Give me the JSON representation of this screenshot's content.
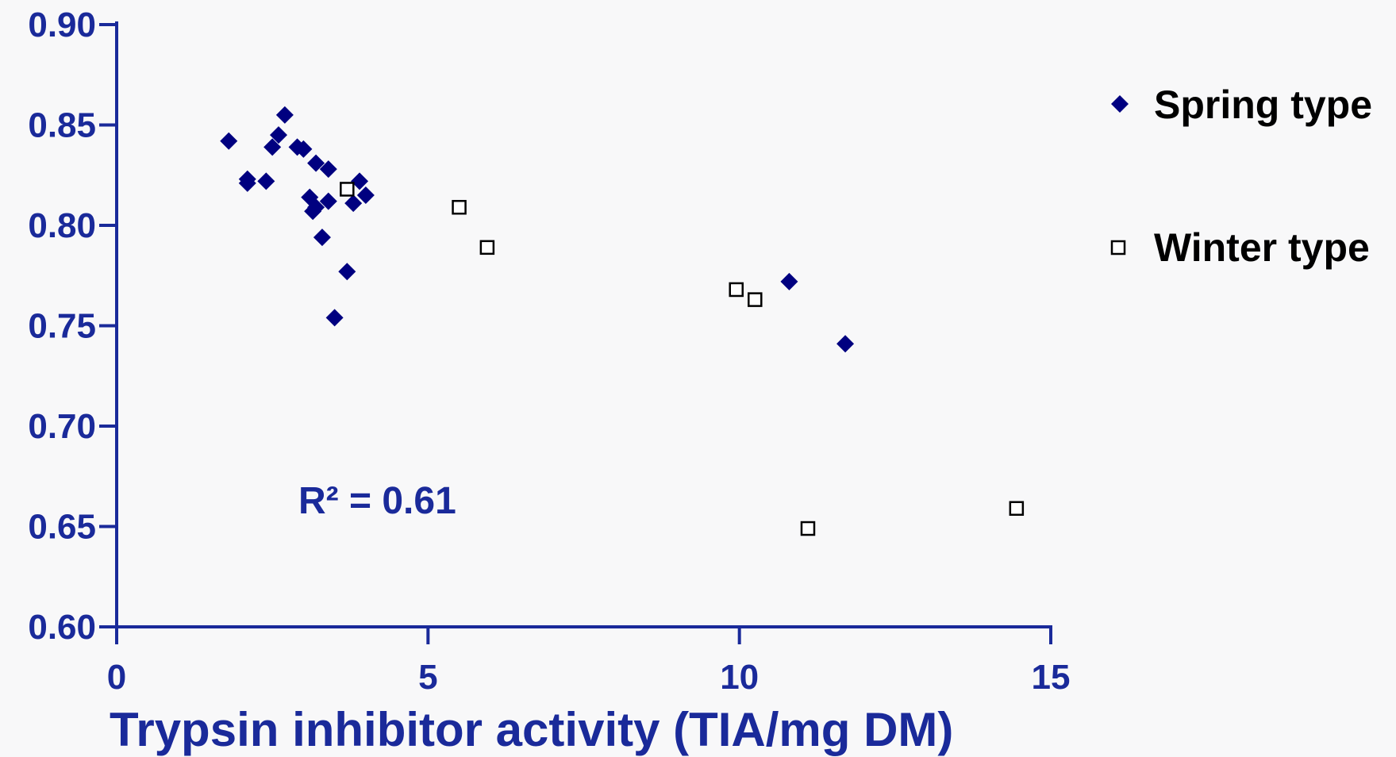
{
  "colors": {
    "axis": "#1a2a9a",
    "spring": "#000080",
    "winter": "#000000",
    "background": "#f8f8f9"
  },
  "chart_data": {
    "type": "scatter",
    "title": "",
    "xlabel": "Trypsin inhibitor activity (TIA/mg DM)",
    "ylabel": "",
    "xlim": [
      0,
      15
    ],
    "ylim": [
      0.6,
      0.9
    ],
    "x_ticks": [
      0,
      5,
      10,
      15
    ],
    "x_tick_labels": [
      "0",
      "5",
      "10",
      "15"
    ],
    "y_ticks": [
      0.6,
      0.65,
      0.7,
      0.75,
      0.8,
      0.85,
      0.9
    ],
    "y_tick_labels": [
      "0.60",
      "0.65",
      "0.70",
      "0.75",
      "0.80",
      "0.85",
      "0.90"
    ],
    "grid": false,
    "legend_position": "right",
    "annotation": "R² = 0.61",
    "series": [
      {
        "name": "Spring type",
        "marker": "diamond",
        "points": [
          [
            1.8,
            0.842
          ],
          [
            2.1,
            0.823
          ],
          [
            2.1,
            0.821
          ],
          [
            2.4,
            0.822
          ],
          [
            2.5,
            0.839
          ],
          [
            2.6,
            0.845
          ],
          [
            2.7,
            0.855
          ],
          [
            2.9,
            0.839
          ],
          [
            3.0,
            0.838
          ],
          [
            3.1,
            0.814
          ],
          [
            3.15,
            0.807
          ],
          [
            3.2,
            0.831
          ],
          [
            3.2,
            0.809
          ],
          [
            3.3,
            0.794
          ],
          [
            3.4,
            0.828
          ],
          [
            3.4,
            0.812
          ],
          [
            3.5,
            0.754
          ],
          [
            3.7,
            0.777
          ],
          [
            3.8,
            0.811
          ],
          [
            3.9,
            0.822
          ],
          [
            4.0,
            0.815
          ],
          [
            10.8,
            0.772
          ],
          [
            11.7,
            0.741
          ]
        ]
      },
      {
        "name": "Winter type",
        "marker": "square-open",
        "points": [
          [
            3.7,
            0.818
          ],
          [
            5.5,
            0.809
          ],
          [
            5.95,
            0.789
          ],
          [
            9.95,
            0.768
          ],
          [
            10.25,
            0.763
          ],
          [
            11.1,
            0.649
          ],
          [
            14.45,
            0.659
          ]
        ]
      }
    ]
  }
}
